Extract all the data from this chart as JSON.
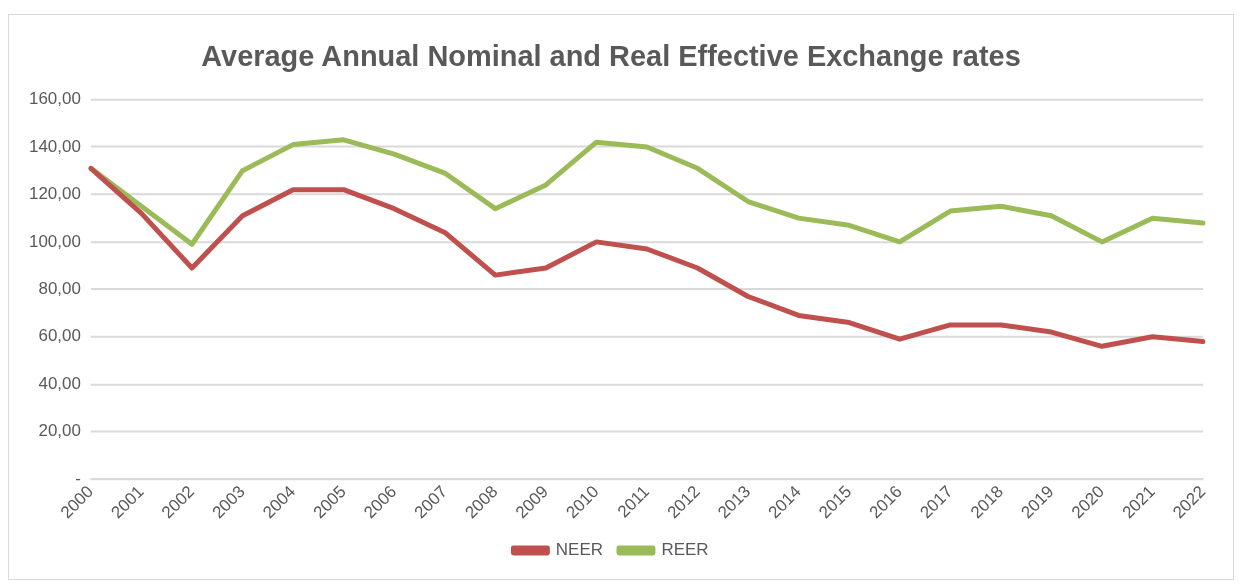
{
  "chart_data": {
    "type": "line",
    "title": "Average Annual Nominal and Real Effective Exchange rates",
    "categories": [
      "2000",
      "2001",
      "2002",
      "2003",
      "2004",
      "2005",
      "2006",
      "2007",
      "2008",
      "2009",
      "2010",
      "2011",
      "2012",
      "2013",
      "2014",
      "2015",
      "2016",
      "2017",
      "2018",
      "2019",
      "2020",
      "2021",
      "2022"
    ],
    "series": [
      {
        "name": "NEER",
        "color": "#c0504d",
        "values": [
          131,
          112,
          89,
          111,
          122,
          122,
          114,
          104,
          86,
          89,
          100,
          97,
          89,
          77,
          69,
          66,
          59,
          65,
          65,
          62,
          56,
          60,
          58
        ]
      },
      {
        "name": "REER",
        "color": "#9bbb59",
        "values": [
          131,
          115,
          99,
          130,
          141,
          143,
          137,
          129,
          114,
          124,
          142,
          140,
          131,
          117,
          110,
          107,
          100,
          113,
          115,
          111,
          100,
          110,
          108
        ]
      }
    ],
    "ylim": [
      0,
      160
    ],
    "yticks": [
      {
        "value": 0,
        "label": "-"
      },
      {
        "value": 20,
        "label": "20,00"
      },
      {
        "value": 40,
        "label": "40,00"
      },
      {
        "value": 60,
        "label": "60,00"
      },
      {
        "value": 80,
        "label": "80,00"
      },
      {
        "value": 100,
        "label": "100,00"
      },
      {
        "value": 120,
        "label": "120,00"
      },
      {
        "value": 140,
        "label": "140,00"
      },
      {
        "value": 160,
        "label": "160,00"
      }
    ],
    "grid": "y",
    "legend": "bottom",
    "marker": "none",
    "line_style": "solid"
  }
}
